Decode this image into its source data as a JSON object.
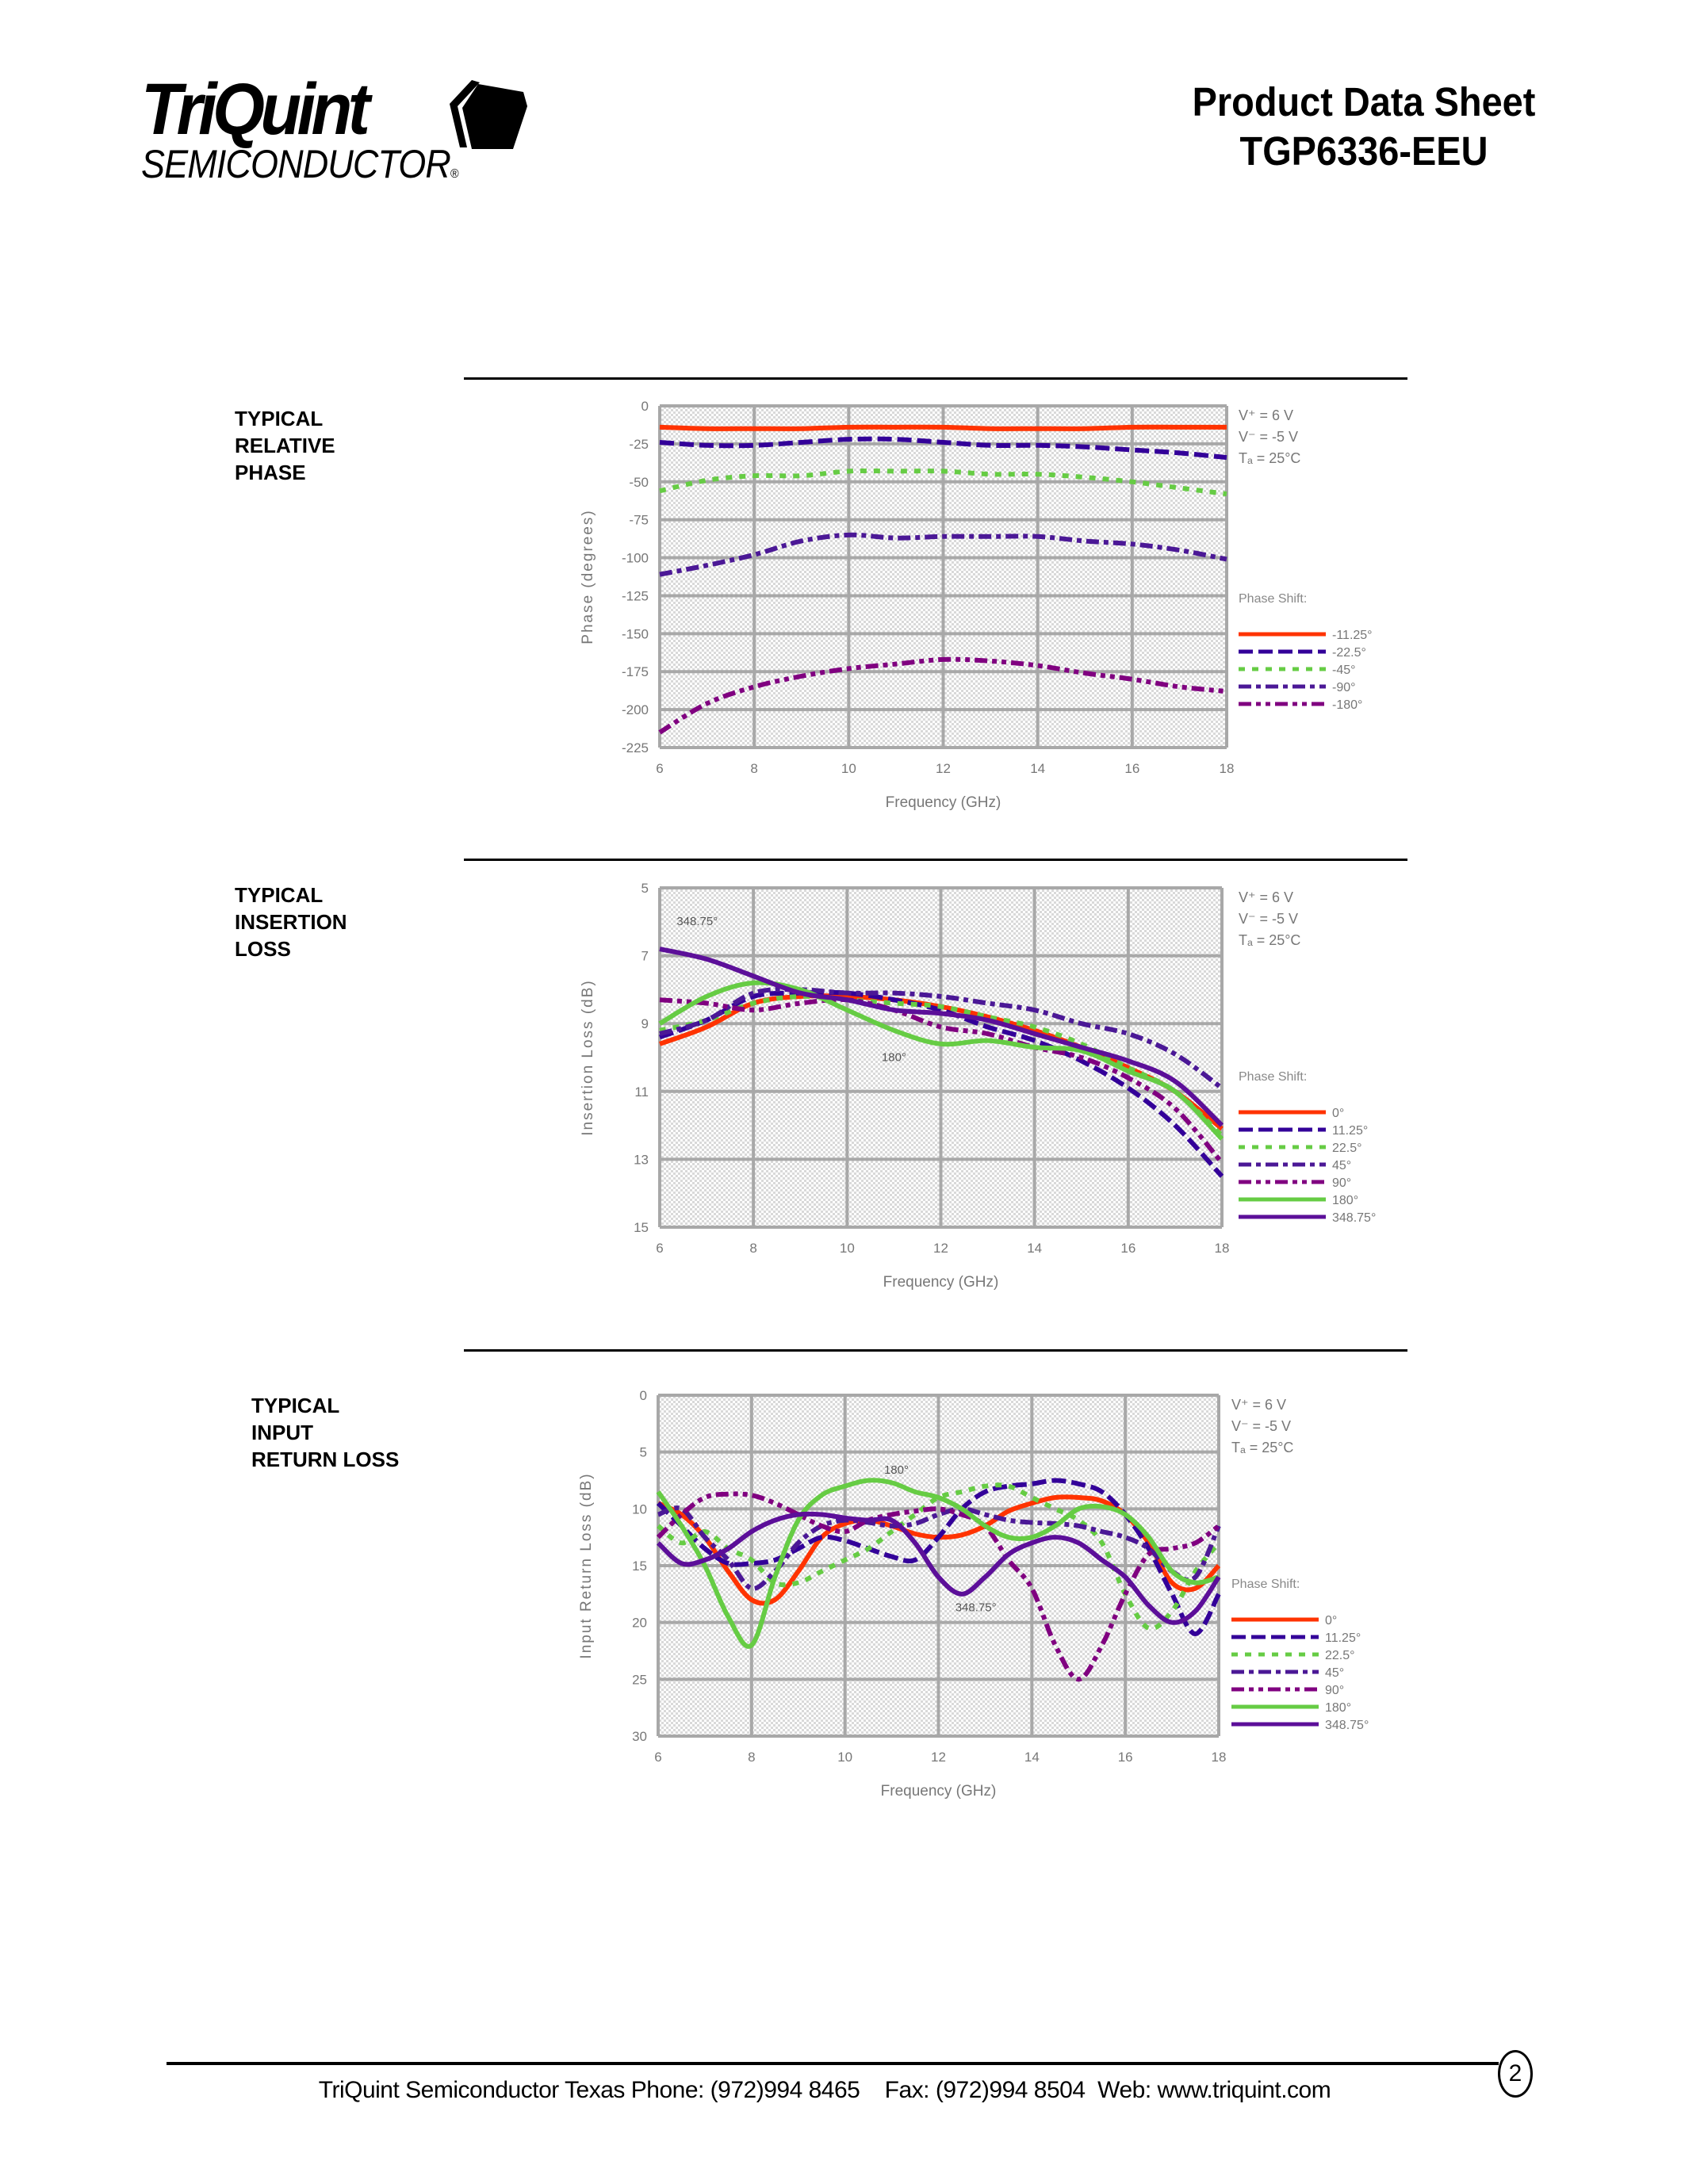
{
  "header": {
    "logo_main": "TriQuint",
    "logo_sub": "SEMICONDUCTOR",
    "logo_reg": "®",
    "title_line1": "Product Data Sheet",
    "title_line2": "TGP6336-EEU"
  },
  "sections": [
    {
      "label_lines": [
        "TYPICAL",
        "RELATIVE",
        "PHASE"
      ]
    },
    {
      "label_lines": [
        "TYPICAL",
        "INSERTION",
        "LOSS"
      ]
    },
    {
      "label_lines": [
        "TYPICAL",
        "INPUT",
        "RETURN LOSS"
      ]
    }
  ],
  "conditions": [
    "V⁺ = 6 V",
    "V⁻ = -5 V",
    "Tₐ = 25°C"
  ],
  "legend_title": "Phase Shift:",
  "colors": {
    "red": "#ff3300",
    "indigo": "#330099",
    "green": "#66cc44",
    "violet": "#4b1896",
    "magenta": "#800080",
    "purple": "#5c0f99",
    "grid": "#a8a8a8",
    "plot_bg": "#f4f2ea"
  },
  "chart_data": [
    {
      "type": "line",
      "title": "Typical Relative Phase",
      "xlabel": "Frequency (GHz)",
      "ylabel": "Phase (degrees)",
      "xlim": [
        6,
        18
      ],
      "ylim": [
        -225,
        0
      ],
      "xticks": [
        6,
        8,
        10,
        12,
        14,
        16,
        18
      ],
      "yticks": [
        0,
        -25,
        -50,
        -75,
        -100,
        -125,
        -150,
        -175,
        -200,
        -225
      ],
      "grid": true,
      "legend_position": "right",
      "x": [
        6,
        7,
        8,
        9,
        10,
        11,
        12,
        13,
        14,
        15,
        16,
        17,
        18
      ],
      "series": [
        {
          "name": "-11.25°",
          "style": "solid",
          "color": "#ff3300",
          "values": [
            -14,
            -15,
            -15,
            -15,
            -14,
            -14,
            -14,
            -15,
            -15,
            -15,
            -14,
            -14,
            -14
          ]
        },
        {
          "name": "-22.5°",
          "style": "dash",
          "color": "#330099",
          "values": [
            -24,
            -26,
            -26,
            -24,
            -22,
            -22,
            -24,
            -26,
            -26,
            -27,
            -29,
            -31,
            -34
          ]
        },
        {
          "name": "-45°",
          "style": "dot",
          "color": "#66cc44",
          "values": [
            -56,
            -49,
            -46,
            -46,
            -43,
            -43,
            -43,
            -45,
            -45,
            -47,
            -50,
            -54,
            -58
          ]
        },
        {
          "name": "-90°",
          "style": "dashdot",
          "color": "#4b1896",
          "values": [
            -111,
            -105,
            -98,
            -89,
            -85,
            -87,
            -86,
            -86,
            -86,
            -89,
            -91,
            -95,
            -101
          ]
        },
        {
          "name": "-180°",
          "style": "dashdotdot",
          "color": "#800080",
          "values": [
            -215,
            -196,
            -185,
            -178,
            -173,
            -170,
            -167,
            -168,
            -171,
            -176,
            -180,
            -185,
            -188
          ]
        }
      ]
    },
    {
      "type": "line",
      "title": "Typical Insertion Loss",
      "xlabel": "Frequency (GHz)",
      "ylabel": "Insertion Loss (dB)",
      "xlim": [
        6,
        18
      ],
      "ylim": [
        15,
        5
      ],
      "xticks": [
        6,
        8,
        10,
        12,
        14,
        16,
        18
      ],
      "yticks": [
        5,
        7,
        9,
        11,
        13,
        15
      ],
      "grid": true,
      "legend_position": "right",
      "annotations": [
        {
          "text": "348.75°",
          "x": 6.8,
          "y": 6.1
        },
        {
          "text": "180°",
          "x": 11.0,
          "y": 10.1
        }
      ],
      "x": [
        6,
        7,
        8,
        9,
        10,
        11,
        12,
        13,
        14,
        15,
        16,
        17,
        18
      ],
      "series": [
        {
          "name": "0°",
          "style": "solid",
          "color": "#ff3300",
          "values": [
            9.6,
            9.1,
            8.4,
            8.2,
            8.2,
            8.3,
            8.5,
            8.8,
            9.2,
            9.7,
            10.3,
            11.0,
            12.1
          ]
        },
        {
          "name": "11.25°",
          "style": "dash",
          "color": "#330099",
          "values": [
            9.4,
            8.9,
            8.2,
            8.1,
            8.1,
            8.3,
            8.6,
            9.1,
            9.5,
            10.1,
            10.9,
            12.0,
            13.5
          ]
        },
        {
          "name": "22.5°",
          "style": "dot",
          "color": "#66cc44",
          "values": [
            9.2,
            8.9,
            8.4,
            8.2,
            8.3,
            8.4,
            8.5,
            8.8,
            9.1,
            9.6,
            10.3,
            11.0,
            12.3
          ]
        },
        {
          "name": "45°",
          "style": "dashdot",
          "color": "#4b1896",
          "values": [
            9.3,
            8.9,
            8.1,
            8.0,
            8.1,
            8.1,
            8.2,
            8.4,
            8.6,
            9.0,
            9.3,
            9.9,
            10.9
          ]
        },
        {
          "name": "90°",
          "style": "dashdotdot",
          "color": "#800080",
          "values": [
            8.3,
            8.4,
            8.6,
            8.4,
            8.3,
            8.6,
            9.1,
            9.3,
            9.7,
            10.0,
            10.6,
            11.5,
            13.1
          ]
        },
        {
          "name": "180°",
          "style": "solid",
          "color": "#66cc44",
          "values": [
            9.0,
            8.2,
            7.8,
            8.0,
            8.6,
            9.2,
            9.6,
            9.5,
            9.7,
            9.8,
            10.4,
            11.0,
            12.4
          ]
        },
        {
          "name": "348.75°",
          "style": "solid",
          "color": "#5c0f99",
          "values": [
            6.8,
            7.1,
            7.6,
            8.1,
            8.3,
            8.6,
            8.7,
            8.9,
            9.3,
            9.7,
            10.1,
            10.7,
            12.0
          ]
        }
      ]
    },
    {
      "type": "line",
      "title": "Typical Input Return Loss",
      "xlabel": "Frequency (GHz)",
      "ylabel": "Input Return Loss (dB)",
      "xlim": [
        6,
        18
      ],
      "ylim": [
        30,
        0
      ],
      "xticks": [
        6,
        8,
        10,
        12,
        14,
        16,
        18
      ],
      "yticks": [
        0,
        5,
        10,
        15,
        20,
        25,
        30
      ],
      "grid": true,
      "legend_position": "right",
      "annotations": [
        {
          "text": "180°",
          "x": 11.1,
          "y": 6.9
        },
        {
          "text": "348.75°",
          "x": 12.8,
          "y": 19.0
        }
      ],
      "x": [
        6,
        6.5,
        7,
        7.5,
        8,
        8.5,
        9,
        9.5,
        10,
        10.5,
        11,
        11.5,
        12,
        12.5,
        13,
        13.5,
        14,
        14.5,
        15,
        15.5,
        16,
        16.5,
        17,
        17.5,
        18
      ],
      "series": [
        {
          "name": "0°",
          "style": "solid",
          "color": "#ff3300",
          "values": [
            9.5,
            10.5,
            12.5,
            15.5,
            18,
            18,
            15.5,
            12.5,
            11.3,
            11.0,
            11.5,
            12.2,
            12.5,
            12.3,
            11.5,
            10.2,
            9.5,
            9.0,
            9.0,
            9.3,
            10.5,
            13,
            16.5,
            17,
            15
          ]
        },
        {
          "name": "11.25°",
          "style": "dash",
          "color": "#330099",
          "values": [
            9.5,
            11.5,
            13.5,
            14.8,
            14.8,
            14.5,
            13.5,
            12.5,
            12.8,
            13.5,
            14.2,
            14.5,
            12.5,
            10.0,
            8.5,
            8.0,
            7.8,
            7.5,
            7.8,
            8.5,
            10.5,
            13.5,
            17.5,
            21,
            17.5
          ]
        },
        {
          "name": "22.5°",
          "style": "dot",
          "color": "#66cc44",
          "values": [
            11.5,
            13.0,
            12.0,
            13.5,
            14.5,
            16.5,
            16.5,
            15.5,
            14.5,
            13.5,
            12.0,
            10.5,
            9.0,
            8.5,
            8.0,
            8.0,
            9.0,
            10.0,
            11.0,
            13.0,
            17.5,
            20.5,
            19.0,
            15.5,
            13.0
          ]
        },
        {
          "name": "45°",
          "style": "dashdot",
          "color": "#4b1896",
          "values": [
            10.5,
            10.0,
            12.5,
            14.5,
            17.0,
            15.5,
            13.0,
            11.5,
            11.0,
            11.2,
            11.5,
            11.3,
            10.5,
            10.0,
            10.5,
            11.0,
            11.2,
            11.3,
            11.5,
            12.0,
            12.5,
            13.5,
            15.5,
            16.0,
            11.5
          ]
        },
        {
          "name": "90°",
          "style": "dashdotdot",
          "color": "#800080",
          "values": [
            12.5,
            10.5,
            9.0,
            8.7,
            8.8,
            9.5,
            10.5,
            11.5,
            12.0,
            11.0,
            10.5,
            10.2,
            10.0,
            10.5,
            11.5,
            14.5,
            17.0,
            22.0,
            25.0,
            22.0,
            17.5,
            14.0,
            13.5,
            13.0,
            11.5
          ]
        },
        {
          "name": "180°",
          "style": "solid",
          "color": "#66cc44",
          "values": [
            8.5,
            11.5,
            15.0,
            19.5,
            22.0,
            16.0,
            11.0,
            8.8,
            8.0,
            7.5,
            7.7,
            8.5,
            9.0,
            10.0,
            11.5,
            12.5,
            12.5,
            11.5,
            10.0,
            9.8,
            10.5,
            12.5,
            15.5,
            16.5,
            16.0
          ]
        },
        {
          "name": "348.75°",
          "style": "solid",
          "color": "#5c0f99",
          "values": [
            13.0,
            14.8,
            14.5,
            13.5,
            12.0,
            11.0,
            10.5,
            10.5,
            10.8,
            11.0,
            11.0,
            13.0,
            16.0,
            17.5,
            16.0,
            14.0,
            13.0,
            12.5,
            13.0,
            14.5,
            16.0,
            18.5,
            20.0,
            19.0,
            16.0
          ]
        }
      ]
    }
  ],
  "footer": {
    "text": "TriQuint Semiconductor Texas Phone: (972)994 8465    Fax: (972)994 8504  Web: www.triquint.com",
    "page_number": "2"
  }
}
